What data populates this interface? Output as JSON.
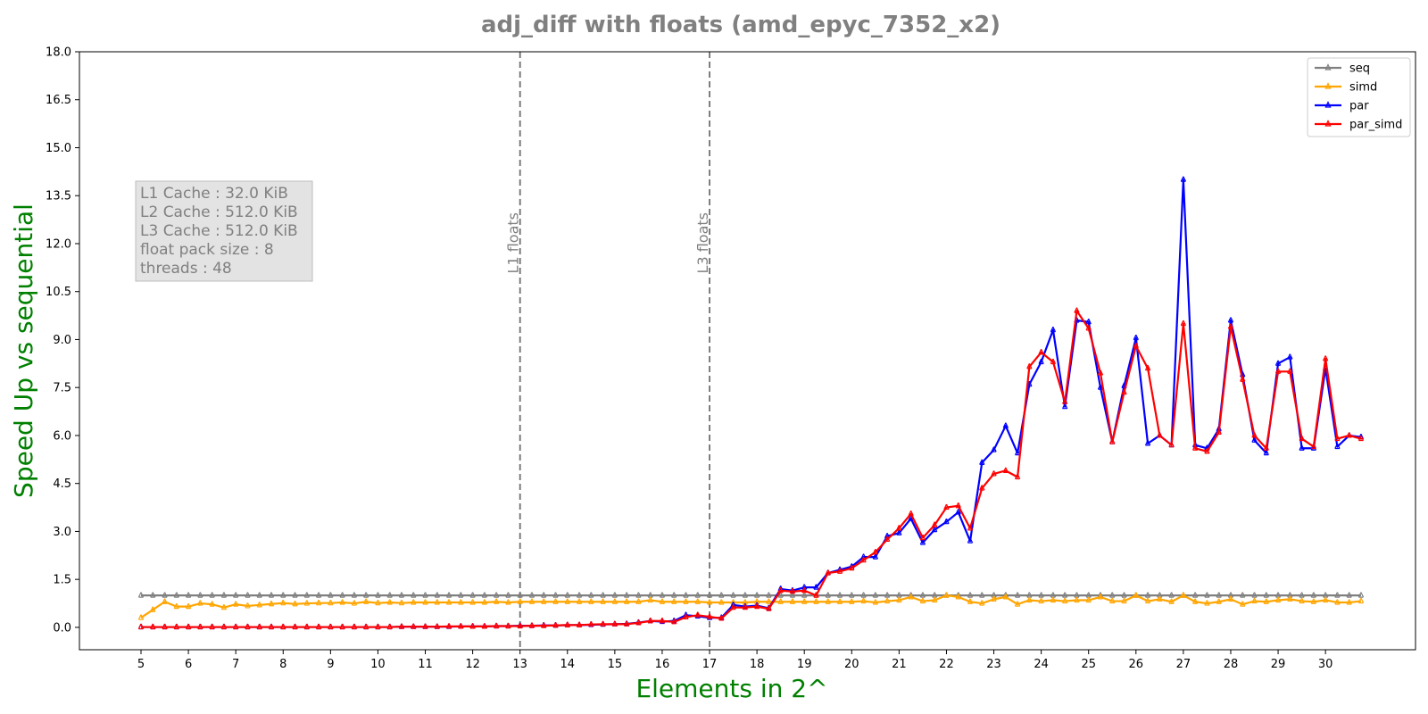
{
  "chart_data": {
    "type": "line",
    "title": "adj_diff with floats  (amd_epyc_7352_x2)",
    "xlabel": "Elements in 2^",
    "ylabel": "Speed Up vs sequential",
    "xlim": [
      3.7,
      31.9
    ],
    "ylim": [
      -0.7,
      18.0
    ],
    "xticks": [
      5,
      6,
      7,
      8,
      9,
      10,
      11,
      12,
      13,
      14,
      15,
      16,
      17,
      18,
      19,
      20,
      21,
      22,
      23,
      24,
      25,
      26,
      27,
      28,
      29,
      30
    ],
    "yticks": [
      0.0,
      1.5,
      3.0,
      4.5,
      6.0,
      7.5,
      9.0,
      10.5,
      12.0,
      13.5,
      15.0,
      16.5,
      18.0
    ],
    "ytick_labels": [
      "0.0",
      "1.5",
      "3.0",
      "4.5",
      "6.0",
      "7.5",
      "9.0",
      "10.5",
      "12.0",
      "13.5",
      "15.0",
      "16.5",
      "18.0"
    ],
    "grid": false,
    "legend_position": "top-right",
    "x": [
      5,
      5.25,
      5.5,
      5.75,
      6,
      6.25,
      6.5,
      6.75,
      7,
      7.25,
      7.5,
      7.75,
      8,
      8.25,
      8.5,
      8.75,
      9,
      9.25,
      9.5,
      9.75,
      10,
      10.25,
      10.5,
      10.75,
      11,
      11.25,
      11.5,
      11.75,
      12,
      12.25,
      12.5,
      12.75,
      13,
      13.25,
      13.5,
      13.75,
      14,
      14.25,
      14.5,
      14.75,
      15,
      15.25,
      15.5,
      15.75,
      16,
      16.25,
      16.5,
      16.75,
      17,
      17.25,
      17.5,
      17.75,
      18,
      18.25,
      18.5,
      18.75,
      19,
      19.25,
      19.5,
      19.75,
      20,
      20.25,
      20.5,
      20.75,
      21,
      21.25,
      21.5,
      21.75,
      22,
      22.25,
      22.5,
      22.75,
      23,
      23.25,
      23.5,
      23.75,
      24,
      24.25,
      24.5,
      24.75,
      25,
      25.25,
      25.5,
      25.75,
      26,
      26.25,
      26.5,
      26.75,
      27,
      27.25,
      27.5,
      27.75,
      28,
      28.25,
      28.5,
      28.75,
      29,
      29.25,
      29.5,
      29.75,
      30,
      30.25,
      30.5,
      30.75
    ],
    "series": [
      {
        "name": "seq",
        "color": "#808080",
        "values": [
          1.0,
          1.0,
          1.0,
          1.0,
          1.0,
          1.0,
          1.0,
          1.0,
          1.0,
          1.0,
          1.0,
          1.0,
          1.0,
          1.0,
          1.0,
          1.0,
          1.0,
          1.0,
          1.0,
          1.0,
          1.0,
          1.0,
          1.0,
          1.0,
          1.0,
          1.0,
          1.0,
          1.0,
          1.0,
          1.0,
          1.0,
          1.0,
          1.0,
          1.0,
          1.0,
          1.0,
          1.0,
          1.0,
          1.0,
          1.0,
          1.0,
          1.0,
          1.0,
          1.0,
          1.0,
          1.0,
          1.0,
          1.0,
          1.0,
          1.0,
          1.0,
          1.0,
          1.0,
          1.0,
          1.0,
          1.0,
          1.0,
          1.0,
          1.0,
          1.0,
          1.0,
          1.0,
          1.0,
          1.0,
          1.0,
          1.0,
          1.0,
          1.0,
          1.0,
          1.0,
          1.0,
          1.0,
          1.0,
          1.0,
          1.0,
          1.0,
          1.0,
          1.0,
          1.0,
          1.0,
          1.0,
          1.0,
          1.0,
          1.0,
          1.0,
          1.0,
          1.0,
          1.0,
          1.0,
          1.0,
          1.0,
          1.0,
          1.0,
          1.0,
          1.0,
          1.0,
          1.0,
          1.0,
          1.0,
          1.0,
          1.0,
          1.0,
          1.0,
          1.0
        ]
      },
      {
        "name": "simd",
        "color": "#FFA500",
        "values": [
          0.3,
          0.55,
          0.8,
          0.65,
          0.65,
          0.75,
          0.72,
          0.62,
          0.72,
          0.67,
          0.7,
          0.73,
          0.76,
          0.73,
          0.75,
          0.76,
          0.76,
          0.78,
          0.75,
          0.8,
          0.76,
          0.78,
          0.76,
          0.78,
          0.78,
          0.78,
          0.78,
          0.78,
          0.78,
          0.78,
          0.8,
          0.78,
          0.8,
          0.8,
          0.8,
          0.8,
          0.8,
          0.8,
          0.8,
          0.8,
          0.8,
          0.8,
          0.8,
          0.85,
          0.8,
          0.8,
          0.8,
          0.8,
          0.78,
          0.78,
          0.78,
          0.78,
          0.8,
          0.8,
          0.8,
          0.8,
          0.8,
          0.8,
          0.8,
          0.8,
          0.8,
          0.82,
          0.78,
          0.82,
          0.85,
          0.95,
          0.82,
          0.85,
          1.0,
          0.95,
          0.8,
          0.75,
          0.88,
          0.95,
          0.72,
          0.85,
          0.82,
          0.85,
          0.82,
          0.85,
          0.85,
          0.95,
          0.82,
          0.82,
          1.0,
          0.82,
          0.88,
          0.8,
          1.0,
          0.8,
          0.75,
          0.8,
          0.88,
          0.72,
          0.82,
          0.8,
          0.85,
          0.88,
          0.82,
          0.8,
          0.85,
          0.78,
          0.78,
          0.82
        ]
      },
      {
        "name": "par",
        "color": "#0000FF",
        "values": [
          0.01,
          0.01,
          0.01,
          0.01,
          0.01,
          0.01,
          0.01,
          0.01,
          0.01,
          0.01,
          0.01,
          0.01,
          0.01,
          0.01,
          0.01,
          0.01,
          0.01,
          0.01,
          0.01,
          0.01,
          0.01,
          0.01,
          0.02,
          0.02,
          0.02,
          0.02,
          0.02,
          0.03,
          0.03,
          0.03,
          0.04,
          0.04,
          0.05,
          0.05,
          0.06,
          0.06,
          0.07,
          0.07,
          0.08,
          0.09,
          0.1,
          0.11,
          0.15,
          0.2,
          0.18,
          0.2,
          0.38,
          0.35,
          0.3,
          0.3,
          0.7,
          0.65,
          0.68,
          0.6,
          1.2,
          1.15,
          1.25,
          1.25,
          1.7,
          1.8,
          1.9,
          2.2,
          2.2,
          2.85,
          2.95,
          3.4,
          2.65,
          3.05,
          3.3,
          3.6,
          2.7,
          5.15,
          5.55,
          6.3,
          5.45,
          7.6,
          8.3,
          9.3,
          6.9,
          9.6,
          9.55,
          7.5,
          5.8,
          7.55,
          9.05,
          5.75,
          6.0,
          5.7,
          14.0,
          5.7,
          5.6,
          6.2,
          9.6,
          7.9,
          5.85,
          5.45,
          8.25,
          8.45,
          5.6,
          5.6,
          8.1,
          5.65,
          6.0,
          5.95
        ]
      },
      {
        "name": "par_simd",
        "color": "#FF0000",
        "values": [
          0.01,
          0.01,
          0.01,
          0.01,
          0.01,
          0.01,
          0.01,
          0.01,
          0.01,
          0.01,
          0.01,
          0.01,
          0.01,
          0.01,
          0.01,
          0.01,
          0.01,
          0.01,
          0.01,
          0.01,
          0.01,
          0.01,
          0.02,
          0.02,
          0.02,
          0.02,
          0.03,
          0.03,
          0.03,
          0.03,
          0.04,
          0.04,
          0.04,
          0.05,
          0.05,
          0.06,
          0.07,
          0.07,
          0.09,
          0.1,
          0.1,
          0.1,
          0.14,
          0.2,
          0.2,
          0.17,
          0.32,
          0.38,
          0.33,
          0.28,
          0.62,
          0.62,
          0.65,
          0.58,
          1.15,
          1.12,
          1.15,
          1.0,
          1.7,
          1.75,
          1.85,
          2.1,
          2.35,
          2.75,
          3.1,
          3.55,
          2.8,
          3.2,
          3.75,
          3.8,
          3.1,
          4.35,
          4.8,
          4.9,
          4.7,
          8.15,
          8.6,
          8.3,
          7.05,
          9.9,
          9.35,
          7.95,
          5.8,
          7.35,
          8.8,
          8.1,
          6.0,
          5.7,
          9.5,
          5.6,
          5.5,
          6.1,
          9.4,
          7.75,
          6.0,
          5.6,
          8.0,
          8.0,
          5.9,
          5.65,
          8.4,
          5.9,
          6.0,
          5.9
        ]
      }
    ],
    "vlines": [
      {
        "x": 13,
        "label": "L1 floats"
      },
      {
        "x": 17,
        "label": "L3 floats"
      }
    ],
    "info_box": [
      "L1 Cache : 32.0 KiB",
      "L2 Cache : 512.0 KiB",
      "L3 Cache : 512.0 KiB",
      "float pack size : 8",
      "threads : 48"
    ]
  }
}
